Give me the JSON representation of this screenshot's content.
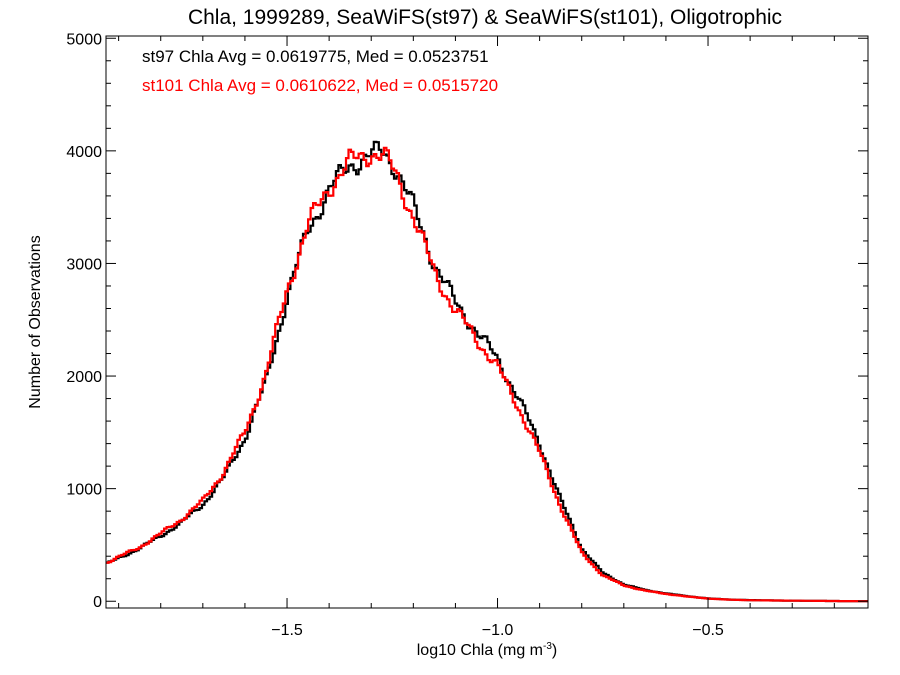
{
  "chart_data": {
    "type": "line",
    "title": "Chla, 1999289, SeaWiFS(st97) & SeaWiFS(st101), Oligotrophic",
    "xlabel_main": "log10 Chla (mg m",
    "xlabel_sup": "-3",
    "xlabel_close": ")",
    "ylabel": "Number of Observations",
    "xlim": [
      -1.93,
      -0.12
    ],
    "ylim": [
      -60,
      5020
    ],
    "x_ticks": [
      -1.5,
      -1.0,
      -0.5
    ],
    "x_tick_labels": [
      "−1.5",
      "−1.0",
      "−0.5"
    ],
    "y_ticks": [
      0,
      1000,
      2000,
      3000,
      4000,
      5000
    ],
    "y_tick_labels": [
      "0",
      "1000",
      "2000",
      "3000",
      "4000",
      "5000"
    ],
    "annotations": [
      {
        "text": "st97 Chla Avg = 0.0619775, Med = 0.0523751",
        "color": "#000000"
      },
      {
        "text": "st101 Chla Avg = 0.0610622, Med = 0.0515720",
        "color": "#ff0000"
      }
    ],
    "series": [
      {
        "color": "#000000",
        "x": [
          -1.93,
          -1.85,
          -1.8,
          -1.75,
          -1.7,
          -1.65,
          -1.6,
          -1.55,
          -1.5,
          -1.45,
          -1.4,
          -1.35,
          -1.3,
          -1.27,
          -1.24,
          -1.2,
          -1.15,
          -1.1,
          -1.05,
          -1.0,
          -0.95,
          -0.9,
          -0.85,
          -0.8,
          -0.75,
          -0.7,
          -0.65,
          -0.6,
          -0.55,
          -0.5,
          -0.45,
          -0.4,
          -0.3,
          -0.2,
          -0.12
        ],
        "y": [
          330,
          470,
          580,
          700,
          860,
          1100,
          1450,
          1950,
          2700,
          3300,
          3650,
          3880,
          3960,
          3990,
          3850,
          3500,
          3000,
          2650,
          2400,
          2150,
          1800,
          1400,
          900,
          470,
          250,
          150,
          100,
          70,
          45,
          25,
          15,
          10,
          5,
          2,
          0
        ]
      },
      {
        "color": "#ff0000",
        "x": [
          -1.93,
          -1.85,
          -1.8,
          -1.75,
          -1.7,
          -1.65,
          -1.6,
          -1.55,
          -1.5,
          -1.45,
          -1.4,
          -1.35,
          -1.3,
          -1.27,
          -1.24,
          -1.2,
          -1.15,
          -1.1,
          -1.05,
          -1.0,
          -0.95,
          -0.9,
          -0.85,
          -0.8,
          -0.75,
          -0.7,
          -0.65,
          -0.6,
          -0.55,
          -0.5,
          -0.45,
          -0.4,
          -0.3,
          -0.2,
          -0.12
        ],
        "y": [
          340,
          480,
          600,
          730,
          890,
          1150,
          1500,
          2020,
          2760,
          3340,
          3680,
          3900,
          3990,
          3950,
          3780,
          3420,
          2920,
          2580,
          2330,
          2080,
          1720,
          1320,
          840,
          430,
          230,
          140,
          95,
          65,
          42,
          24,
          14,
          9,
          5,
          2,
          0
        ]
      }
    ]
  }
}
